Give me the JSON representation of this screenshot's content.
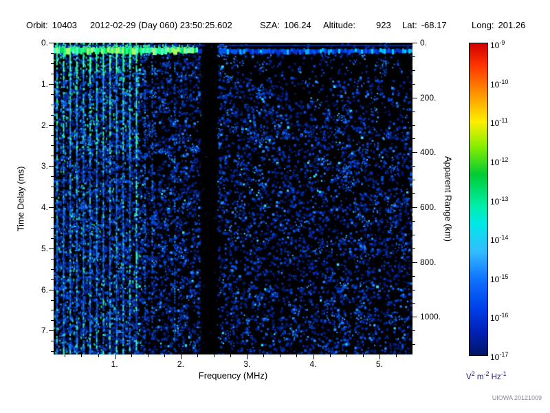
{
  "header": {
    "orbit_label": "Orbit:",
    "orbit": "10403",
    "datetime": "2012-02-29 (Day 060) 23:50:25.602",
    "sza_label": "SZA:",
    "sza": "106.24",
    "altitude_label": "Altitude:",
    "altitude": "923",
    "lat_label": "Lat:",
    "lat": "-68.17",
    "long_label": "Long:",
    "long": "201.26"
  },
  "chart_data": {
    "type": "heatmap",
    "title": "AIS radar spectrogram (ionogram)",
    "xlabel": "Frequency (MHz)",
    "ylabel_left": "Time Delay (ms)",
    "ylabel_right": "Apparent Range (km)",
    "plot_bg": "#000000",
    "x_range_mhz": [
      0.08,
      5.5
    ],
    "x_tick_labels": [
      "1.",
      "2.",
      "3.",
      "4.",
      "5."
    ],
    "x_minor_step_mhz": 0.25,
    "y_range_ms": [
      0,
      7.58
    ],
    "y_tick_labels": [
      "0.",
      "1.",
      "2.",
      "3.",
      "4.",
      "5.",
      "6.",
      "7."
    ],
    "y_minor_step_ms": 0.25,
    "range_km_per_ms": 150,
    "right_tick_labels": [
      "0.",
      "200.",
      "400.",
      "600.",
      "800.",
      "1000."
    ],
    "right_minor_step_km": 50,
    "colorbar": {
      "exponent_base": "10",
      "exponents": [
        -9,
        -10,
        -11,
        -12,
        -13,
        -14,
        -15,
        -16,
        -17
      ],
      "unit_parts": [
        [
          "V",
          "2"
        ],
        [
          "m",
          "-2"
        ],
        [
          "Hz",
          "-1"
        ]
      ],
      "stops": [
        {
          "c": "#d00000",
          "pos": 0
        },
        {
          "c": "#ff3300",
          "pos": 7
        },
        {
          "c": "#ff8800",
          "pos": 15
        },
        {
          "c": "#ffee00",
          "pos": 25
        },
        {
          "c": "#88ee00",
          "pos": 33
        },
        {
          "c": "#00cc33",
          "pos": 42
        },
        {
          "c": "#00eeaa",
          "pos": 52
        },
        {
          "c": "#00e8e8",
          "pos": 58
        },
        {
          "c": "#33bbff",
          "pos": 67
        },
        {
          "c": "#1177ff",
          "pos": 75
        },
        {
          "c": "#0044ee",
          "pos": 84
        },
        {
          "c": "#0022bb",
          "pos": 92
        },
        {
          "c": "#001566",
          "pos": 100
        }
      ]
    },
    "features": {
      "seed": 42,
      "noise_palette": [
        "#001a70",
        "#0030b0",
        "#0050e0",
        "#2288ff",
        "#33ddff"
      ],
      "noise_density": [
        {
          "max_mhz": 0.15,
          "p": 0.5
        },
        {
          "max_mhz": 1.45,
          "p": 0.75
        },
        {
          "max_mhz": 2.3,
          "p": 0.6
        },
        {
          "max_mhz": 2.55,
          "p": 0.05
        },
        {
          "max_mhz": 5.5,
          "p": 0.5
        }
      ],
      "clusters": {
        "count": 260,
        "dots_min": 3,
        "dots_max": 12,
        "radius": 9
      },
      "cyclotron_harmonics": {
        "first_mhz": 0.12,
        "spacing_mhz": 0.1,
        "count": 13,
        "bright_top_color": "#44ffbb"
      },
      "extra_streak_mhz": [
        1.45,
        1.56,
        1.9
      ],
      "attenuation_gap_mhz": [
        2.3,
        2.55
      ],
      "surface_echo_band": {
        "delay_ms": 0.2,
        "bright_max_mhz": 2.23,
        "bright_colors": [
          "#22ff88",
          "#55ffcc",
          "#aaff66",
          "#00dd66"
        ],
        "faint_colors": [
          "#0033cc",
          "#0055ee",
          "#00aaff",
          "#00ccff"
        ]
      }
    },
    "credit": "UIOWA 20121009"
  }
}
